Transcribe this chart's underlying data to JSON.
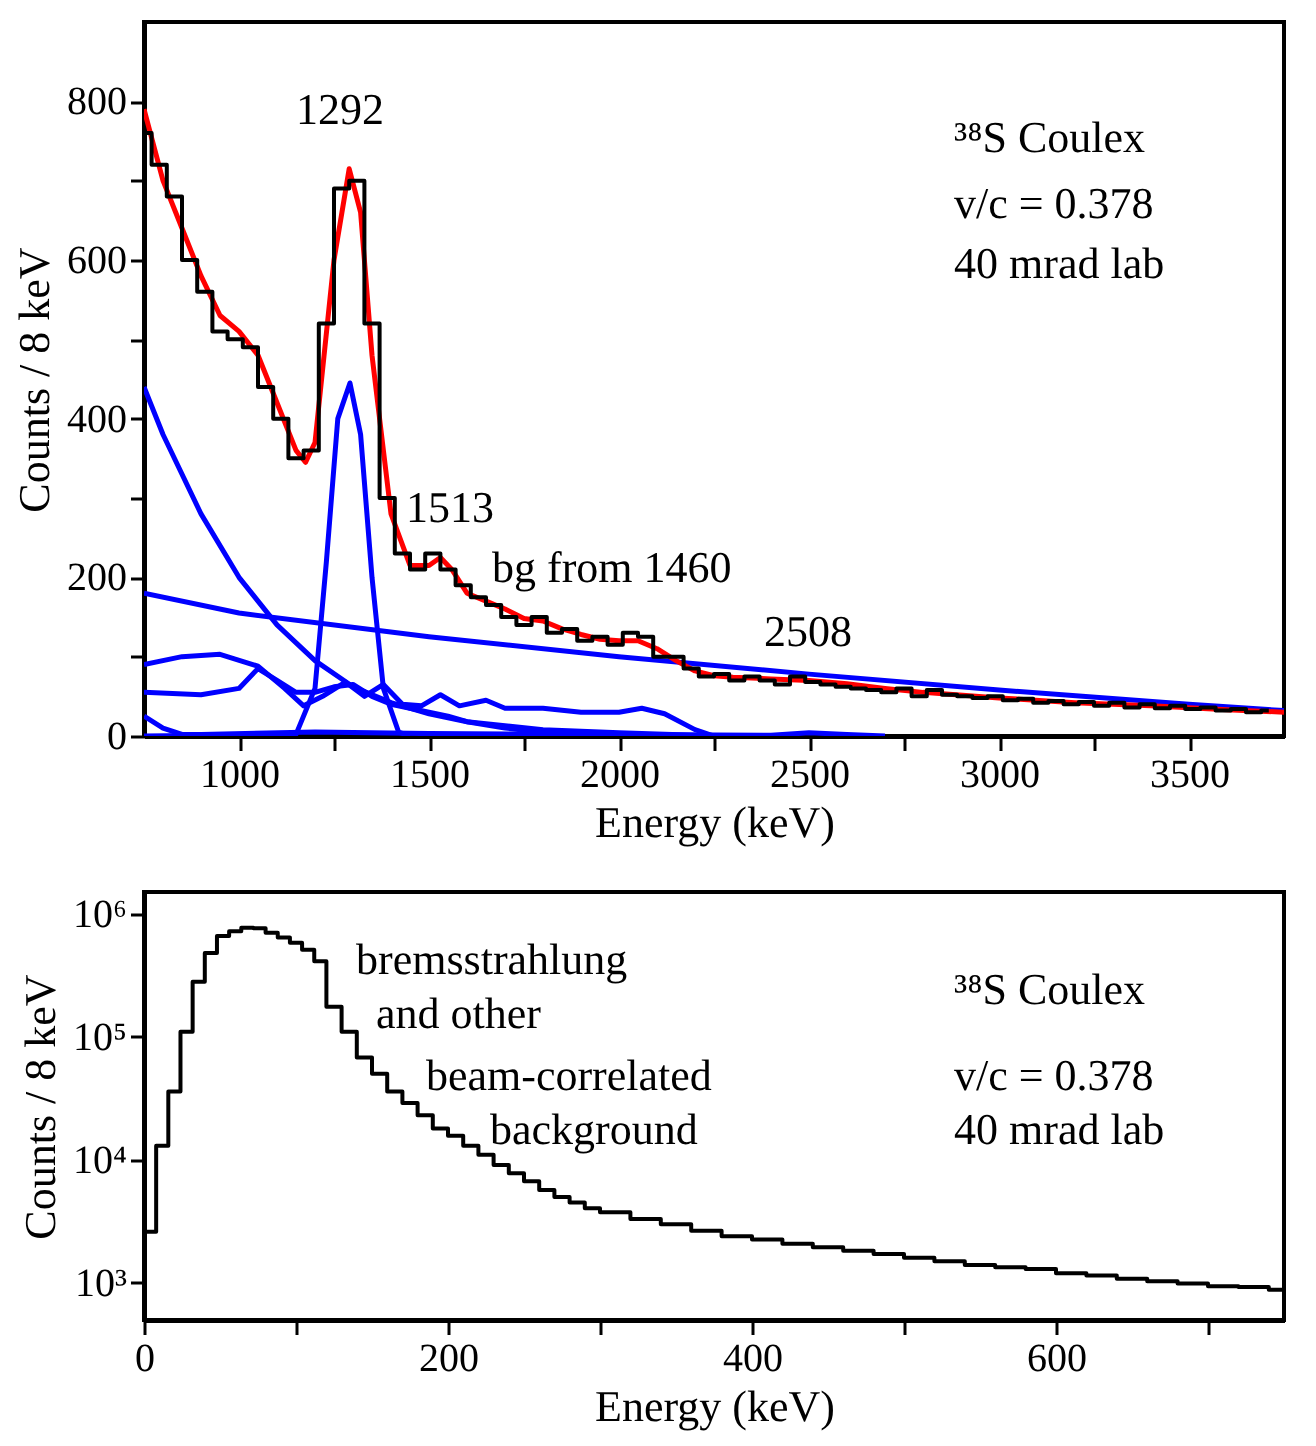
{
  "chart_data": [
    {
      "type": "step",
      "xlabel": "Energy (keV)",
      "ylabel": "Counts / 8 keV",
      "xlim": [
        750,
        3750
      ],
      "ylim": [
        0,
        900
      ],
      "xticks": [
        1000,
        {
          "value": 1250,
          "label": null
        },
        1500,
        {
          "value": 1750,
          "label": null
        },
        2000,
        {
          "value": 2250,
          "label": null
        },
        2500,
        {
          "value": 2750,
          "label": null
        },
        3000,
        {
          "value": 3250,
          "label": null
        },
        3500
      ],
      "yticks": [
        0,
        {
          "value": 100,
          "label": null
        },
        200,
        {
          "value": 300,
          "label": null
        },
        400,
        {
          "value": 500,
          "label": null
        },
        600,
        {
          "value": 700,
          "label": null
        },
        800
      ],
      "grid": false,
      "series": [
        {
          "type": "step",
          "color": "#000000",
          "x": [
            750,
            790,
            830,
            870,
            910,
            950,
            990,
            1030,
            1070,
            1110,
            1150,
            1190,
            1230,
            1270,
            1310,
            1350,
            1390,
            1430,
            1470,
            1510,
            1550,
            1590,
            1630,
            1670,
            1710,
            1750,
            1790,
            1830,
            1870,
            1910,
            1950,
            1990,
            2030,
            2070,
            2110,
            2150,
            2190,
            2230,
            2270,
            2310,
            2350,
            2390,
            2430,
            2470,
            2510,
            2550,
            2590,
            2630,
            2670,
            2710,
            2750,
            2790,
            2830,
            2870,
            2910,
            2950,
            2990,
            3030,
            3070,
            3110,
            3150,
            3190,
            3230,
            3270,
            3310,
            3350,
            3390,
            3430,
            3470,
            3510,
            3550,
            3590,
            3630,
            3670,
            3710
          ],
          "values": [
            760,
            720,
            680,
            600,
            560,
            510,
            500,
            490,
            440,
            400,
            350,
            360,
            520,
            690,
            700,
            520,
            300,
            230,
            210,
            230,
            210,
            190,
            175,
            165,
            150,
            140,
            150,
            130,
            135,
            120,
            125,
            115,
            130,
            125,
            100,
            100,
            85,
            75,
            78,
            70,
            75,
            70,
            65,
            75,
            68,
            65,
            62,
            60,
            58,
            55,
            60,
            50,
            58,
            52,
            50,
            48,
            50,
            45,
            47,
            42,
            44,
            40,
            43,
            38,
            42,
            36,
            40,
            35,
            38,
            34,
            36,
            32,
            34,
            30,
            32
          ]
        },
        {
          "type": "line",
          "color": "#0000ff",
          "x": [
            750,
            800,
            900,
            1000,
            1100,
            1200,
            1300,
            1400,
            1500,
            1600,
            1800,
            2000,
            2200,
            2300
          ],
          "values": [
            440,
            380,
            280,
            200,
            140,
            95,
            62,
            42,
            28,
            18,
            8,
            4,
            1,
            0
          ]
        },
        {
          "type": "line",
          "color": "#0000ff",
          "x": [
            750,
            1000,
            1500,
            2000,
            2500,
            3000,
            3500,
            3750
          ],
          "values": [
            180,
            155,
            125,
            100,
            78,
            58,
            40,
            32
          ]
        },
        {
          "type": "line",
          "color": "#0000ff",
          "x": [
            750,
            1150,
            1200,
            1230,
            1260,
            1292,
            1320,
            1350,
            1380,
            1420,
            1450
          ],
          "values": [
            0,
            2,
            60,
            220,
            400,
            445,
            380,
            200,
            60,
            5,
            0
          ]
        },
        {
          "type": "line",
          "color": "#0000ff",
          "x": [
            750,
            850,
            950,
            1050,
            1120,
            1170,
            1220,
            1280,
            1330,
            1380,
            1430,
            1480,
            1530,
            1580,
            1650,
            1700,
            1800,
            1900,
            2000,
            2060,
            2120,
            2200,
            2250
          ],
          "values": [
            90,
            100,
            103,
            88,
            60,
            38,
            50,
            68,
            50,
            65,
            40,
            38,
            52,
            38,
            45,
            35,
            35,
            30,
            30,
            35,
            28,
            8,
            0
          ]
        },
        {
          "type": "line",
          "color": "#0000ff",
          "x": [
            750,
            900,
            1000,
            1050,
            1100,
            1150,
            1200,
            1250,
            1300,
            1350,
            1400,
            1450,
            1500,
            1550,
            1600,
            1700,
            1800,
            1900,
            2000,
            2100
          ],
          "values": [
            55,
            52,
            60,
            85,
            70,
            55,
            55,
            62,
            65,
            50,
            40,
            35,
            30,
            25,
            18,
            10,
            5,
            2,
            1,
            0
          ]
        },
        {
          "type": "line",
          "color": "#0000ff",
          "x": [
            750,
            800,
            850,
            900,
            1200,
            1500,
            2000,
            2400,
            2500,
            2600,
            2700
          ],
          "values": [
            25,
            10,
            2,
            2,
            5,
            3,
            2,
            1,
            4,
            2,
            0
          ]
        },
        {
          "type": "line",
          "color": "#ff0000",
          "x": [
            750,
            800,
            850,
            900,
            950,
            1000,
            1050,
            1100,
            1150,
            1175,
            1200,
            1250,
            1290,
            1320,
            1350,
            1400,
            1450,
            1500,
            1530,
            1560,
            1600,
            1650,
            1700,
            1750,
            1800,
            1850,
            1900,
            1950,
            2000,
            2050,
            2100,
            2150,
            2200,
            2250,
            2300,
            2400,
            2500,
            2600,
            2700,
            2800,
            3000,
            3200,
            3400,
            3600,
            3750
          ],
          "values": [
            790,
            700,
            640,
            580,
            530,
            510,
            480,
            420,
            360,
            345,
            370,
            600,
            715,
            660,
            480,
            280,
            215,
            215,
            225,
            210,
            180,
            170,
            160,
            148,
            145,
            135,
            128,
            122,
            120,
            120,
            110,
            95,
            82,
            76,
            74,
            72,
            70,
            66,
            60,
            55,
            48,
            42,
            38,
            33,
            30
          ]
        }
      ],
      "annotations": [
        "1292",
        "1513",
        "bg from 1460",
        "2508",
        "³⁸S Coulex",
        "v/c = 0.378",
        "40 mrad lab"
      ]
    },
    {
      "type": "histogram",
      "xlabel": "Energy (keV)",
      "ylabel": "Counts / 8 keV",
      "log": "y",
      "xlim": [
        0,
        750
      ],
      "ylim": [
        500,
        1500000
      ],
      "xticks": [
        0,
        {
          "value": 100,
          "label": null
        },
        200,
        {
          "value": 300,
          "label": null
        },
        400,
        {
          "value": 500,
          "label": null
        },
        600,
        {
          "value": 700,
          "label": null
        }
      ],
      "yticks": [
        {
          "value": 1000,
          "label": "10³"
        },
        {
          "value": 10000,
          "label": "10⁴"
        },
        {
          "value": 100000,
          "label": "10⁵"
        },
        {
          "value": 1000000,
          "label": "10⁶"
        }
      ],
      "grid": false,
      "color": "#000000",
      "bins": [
        0,
        8,
        16,
        24,
        32,
        40,
        48,
        56,
        64,
        72,
        80,
        88,
        96,
        104,
        112,
        120,
        130,
        140,
        150,
        160,
        170,
        180,
        190,
        200,
        210,
        220,
        230,
        240,
        250,
        260,
        270,
        280,
        290,
        300,
        320,
        340,
        360,
        380,
        400,
        420,
        440,
        460,
        480,
        500,
        520,
        540,
        560,
        580,
        600,
        620,
        640,
        660,
        680,
        700,
        720,
        740,
        750
      ],
      "values": [
        2600,
        13000,
        36000,
        110000,
        280000,
        480000,
        660000,
        720000,
        770000,
        760000,
        700000,
        640000,
        580000,
        510000,
        410000,
        175000,
        110000,
        68000,
        50000,
        36000,
        29000,
        23000,
        18000,
        15700,
        13000,
        11000,
        9100,
        7800,
        6700,
        5700,
        5000,
        4500,
        4050,
        3750,
        3300,
        3000,
        2650,
        2400,
        2250,
        2080,
        1950,
        1830,
        1720,
        1600,
        1500,
        1400,
        1340,
        1300,
        1200,
        1150,
        1080,
        1030,
        990,
        940,
        925,
        880
      ],
      "annotations": [
        "bremsstrahlung",
        "and other",
        "beam-correlated",
        "background",
        "³⁸S Coulex",
        "v/c = 0.378",
        "40 mrad lab"
      ]
    }
  ]
}
